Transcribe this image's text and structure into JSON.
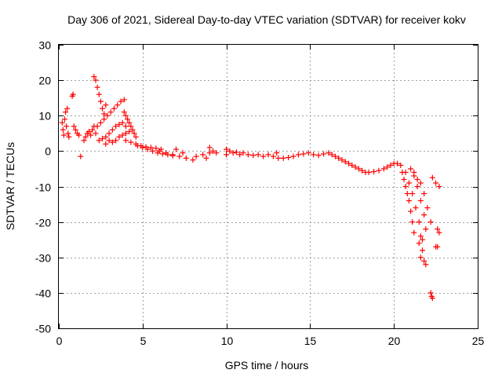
{
  "chart_data": {
    "type": "scatter",
    "title": "Day 306 of 2021, Sidereal Day-to-day VTEC variation (SDTVAR) for receiver kokv",
    "xlabel": "GPS time / hours",
    "ylabel": "SDTVAR / TECUs",
    "xlim": [
      0,
      25
    ],
    "ylim": [
      -50,
      30
    ],
    "xticks": [
      "0",
      "5",
      "10",
      "15",
      "20",
      "25"
    ],
    "yticks": [
      "30",
      "20",
      "10",
      "0",
      "-10",
      "-20",
      "-30",
      "-40",
      "-50"
    ],
    "grid": true,
    "marker": "+",
    "color": "#ff0000",
    "series": [
      {
        "name": "SDTVAR",
        "points": [
          [
            0.2,
            8
          ],
          [
            0.25,
            6
          ],
          [
            0.3,
            4.5
          ],
          [
            0.35,
            9
          ],
          [
            0.4,
            11
          ],
          [
            0.45,
            7
          ],
          [
            0.5,
            12
          ],
          [
            0.55,
            5
          ],
          [
            0.6,
            4
          ],
          [
            0.8,
            15.5
          ],
          [
            0.85,
            16
          ],
          [
            0.9,
            7
          ],
          [
            1.0,
            6
          ],
          [
            1.1,
            5
          ],
          [
            1.2,
            4.5
          ],
          [
            1.3,
            -1.5
          ],
          [
            1.5,
            3
          ],
          [
            1.6,
            4
          ],
          [
            1.7,
            5
          ],
          [
            1.8,
            5.5
          ],
          [
            1.9,
            4.5
          ],
          [
            2.0,
            6
          ],
          [
            2.1,
            7
          ],
          [
            2.2,
            5
          ],
          [
            2.1,
            21
          ],
          [
            2.2,
            20
          ],
          [
            2.3,
            18
          ],
          [
            2.4,
            16
          ],
          [
            2.5,
            14
          ],
          [
            2.6,
            12
          ],
          [
            2.7,
            10.5
          ],
          [
            2.8,
            13
          ],
          [
            2.3,
            7
          ],
          [
            2.5,
            8
          ],
          [
            2.7,
            9
          ],
          [
            2.9,
            10
          ],
          [
            3.1,
            11
          ],
          [
            3.3,
            12
          ],
          [
            3.5,
            13
          ],
          [
            3.7,
            14
          ],
          [
            3.9,
            14.5
          ],
          [
            2.4,
            3
          ],
          [
            2.6,
            3.5
          ],
          [
            2.8,
            4
          ],
          [
            3.0,
            5
          ],
          [
            3.2,
            6
          ],
          [
            3.4,
            7
          ],
          [
            3.6,
            7.5
          ],
          [
            3.8,
            8
          ],
          [
            4.0,
            7
          ],
          [
            2.8,
            2
          ],
          [
            3.0,
            3
          ],
          [
            3.2,
            2.5
          ],
          [
            3.4,
            3
          ],
          [
            3.6,
            4
          ],
          [
            3.8,
            4.5
          ],
          [
            4.0,
            5
          ],
          [
            4.2,
            5.5
          ],
          [
            3.9,
            11
          ],
          [
            4.0,
            10
          ],
          [
            4.1,
            9
          ],
          [
            4.2,
            8
          ],
          [
            4.3,
            7
          ],
          [
            4.4,
            6
          ],
          [
            4.5,
            5
          ],
          [
            4.6,
            4
          ],
          [
            4.0,
            3
          ],
          [
            4.3,
            2.5
          ],
          [
            4.6,
            2
          ],
          [
            4.9,
            1.5
          ],
          [
            5.2,
            1.2
          ],
          [
            5.5,
            1
          ],
          [
            5.8,
            0.8
          ],
          [
            6.1,
            0.5
          ],
          [
            4.7,
            1.5
          ],
          [
            5.0,
            1
          ],
          [
            5.3,
            0.5
          ],
          [
            5.6,
            0
          ],
          [
            5.9,
            -0.5
          ],
          [
            6.2,
            -0.8
          ],
          [
            6.5,
            -1
          ],
          [
            6.8,
            -1.3
          ],
          [
            6.0,
            0
          ],
          [
            6.4,
            -0.5
          ],
          [
            6.8,
            -1
          ],
          [
            7.2,
            -1.5
          ],
          [
            7.6,
            -2
          ],
          [
            8.0,
            -2.5
          ],
          [
            7.0,
            0.5
          ],
          [
            7.4,
            -0.5
          ],
          [
            8.2,
            -1.5
          ],
          [
            8.6,
            -1
          ],
          [
            9.0,
            -0.5
          ],
          [
            9.2,
            0
          ],
          [
            9.4,
            -0.5
          ],
          [
            9.0,
            1
          ],
          [
            8.8,
            -2
          ],
          [
            10.0,
            0.5
          ],
          [
            10.2,
            0
          ],
          [
            10.4,
            -0.5
          ],
          [
            10.6,
            -0.3
          ],
          [
            10.8,
            -1
          ],
          [
            10.0,
            -1
          ],
          [
            11.0,
            -0.5
          ],
          [
            11.3,
            -1
          ],
          [
            11.6,
            -1.2
          ],
          [
            11.9,
            -1
          ],
          [
            12.2,
            -1.5
          ],
          [
            12.5,
            -1
          ],
          [
            12.8,
            -1.5
          ],
          [
            13.1,
            -2
          ],
          [
            13.4,
            -2
          ],
          [
            13.7,
            -1.8
          ],
          [
            14.0,
            -1.5
          ],
          [
            14.3,
            -1
          ],
          [
            13.0,
            -0.5
          ],
          [
            14.6,
            -0.8
          ],
          [
            14.9,
            -0.5
          ],
          [
            15.2,
            -1
          ],
          [
            15.5,
            -1.2
          ],
          [
            15.8,
            -0.8
          ],
          [
            16.1,
            -0.5
          ],
          [
            16.3,
            -1
          ],
          [
            16.5,
            -1.5
          ],
          [
            16.7,
            -2
          ],
          [
            16.9,
            -2.5
          ],
          [
            17.1,
            -3
          ],
          [
            17.3,
            -3.5
          ],
          [
            17.5,
            -4
          ],
          [
            17.7,
            -4.5
          ],
          [
            17.9,
            -5
          ],
          [
            18.1,
            -5.5
          ],
          [
            18.3,
            -6
          ],
          [
            18.5,
            -6
          ],
          [
            18.8,
            -5.8
          ],
          [
            19.1,
            -5.5
          ],
          [
            19.4,
            -5
          ],
          [
            19.6,
            -4.5
          ],
          [
            19.8,
            -4
          ],
          [
            20.0,
            -3.5
          ],
          [
            20.2,
            -3.5
          ],
          [
            20.4,
            -4
          ],
          [
            20.5,
            -6
          ],
          [
            20.6,
            -8
          ],
          [
            20.7,
            -10
          ],
          [
            20.8,
            -12
          ],
          [
            20.9,
            -14
          ],
          [
            21.0,
            -17
          ],
          [
            21.1,
            -20
          ],
          [
            21.2,
            -23
          ],
          [
            20.7,
            -6
          ],
          [
            20.9,
            -9
          ],
          [
            21.1,
            -12
          ],
          [
            21.3,
            -16
          ],
          [
            21.5,
            -20
          ],
          [
            21.6,
            -24
          ],
          [
            21.7,
            -28
          ],
          [
            21.8,
            -31
          ],
          [
            21.0,
            -5
          ],
          [
            21.2,
            -7
          ],
          [
            21.4,
            -10
          ],
          [
            21.6,
            -14
          ],
          [
            21.8,
            -18
          ],
          [
            21.9,
            -22
          ],
          [
            21.5,
            -26
          ],
          [
            21.6,
            -30
          ],
          [
            21.9,
            -32
          ],
          [
            21.7,
            -25
          ],
          [
            21.2,
            -6
          ],
          [
            21.4,
            -8
          ],
          [
            21.6,
            -9
          ],
          [
            21.8,
            -12
          ],
          [
            22.0,
            -16
          ],
          [
            22.2,
            -20
          ],
          [
            22.2,
            -40
          ],
          [
            22.25,
            -41
          ],
          [
            22.3,
            -41.5
          ],
          [
            22.3,
            -7.5
          ],
          [
            22.5,
            -9
          ],
          [
            22.7,
            -10
          ],
          [
            22.6,
            -22
          ],
          [
            22.7,
            -23
          ],
          [
            22.5,
            -27
          ],
          [
            22.6,
            -27
          ]
        ]
      }
    ]
  }
}
